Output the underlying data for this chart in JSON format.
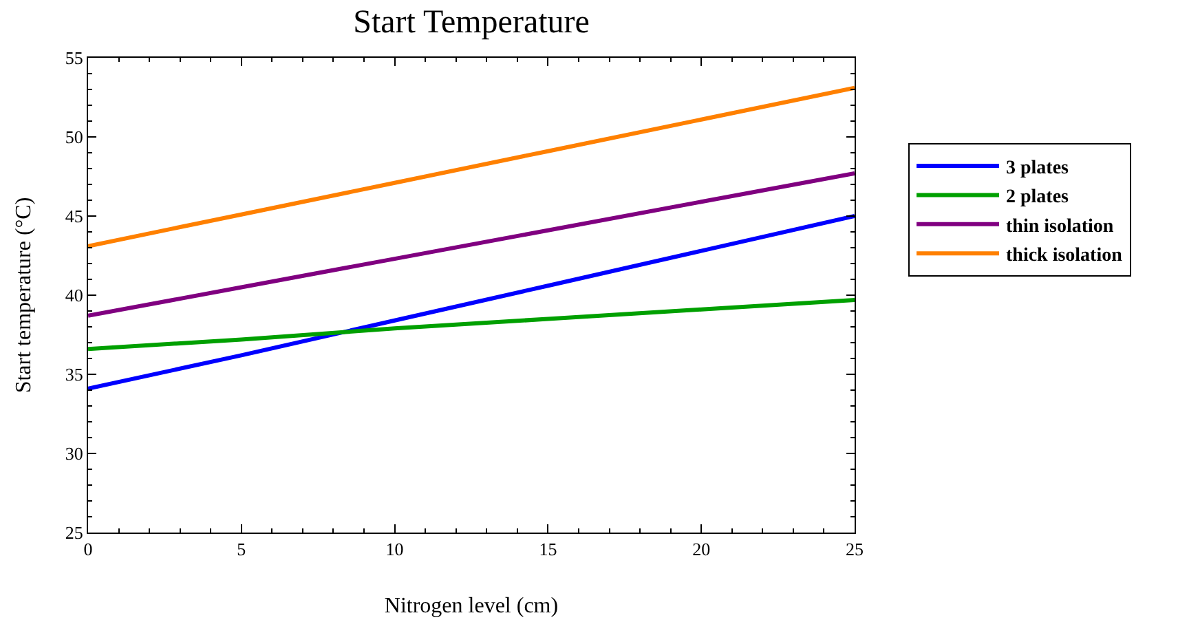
{
  "chart_data": {
    "type": "line",
    "title": "Start Temperature",
    "xlabel": "Nitrogen level (cm)",
    "ylabel": "Start temperature (°C)",
    "x": [
      0,
      5,
      10,
      15,
      20,
      25
    ],
    "series": [
      {
        "name": "3 plates",
        "color": "#0000ff",
        "values": [
          34.1,
          36.2,
          38.4,
          40.6,
          42.8,
          45.0
        ]
      },
      {
        "name": "2 plates",
        "color": "#00a000",
        "values": [
          36.6,
          37.2,
          37.9,
          38.5,
          39.1,
          39.7
        ]
      },
      {
        "name": "thin isolation",
        "color": "#800080",
        "values": [
          38.7,
          40.5,
          42.3,
          44.1,
          45.9,
          47.7
        ]
      },
      {
        "name": "thick isolation",
        "color": "#ff8000",
        "values": [
          43.1,
          45.1,
          47.1,
          49.1,
          51.1,
          53.1
        ]
      }
    ],
    "xlim": [
      0,
      25
    ],
    "xticks": [
      0,
      5,
      10,
      15,
      20,
      25
    ],
    "ylim": [
      25,
      55
    ],
    "yticks": [
      25,
      30,
      35,
      40,
      45,
      50,
      55
    ],
    "grid": false,
    "legend": "right",
    "marker": "none",
    "line_style": "solid"
  }
}
